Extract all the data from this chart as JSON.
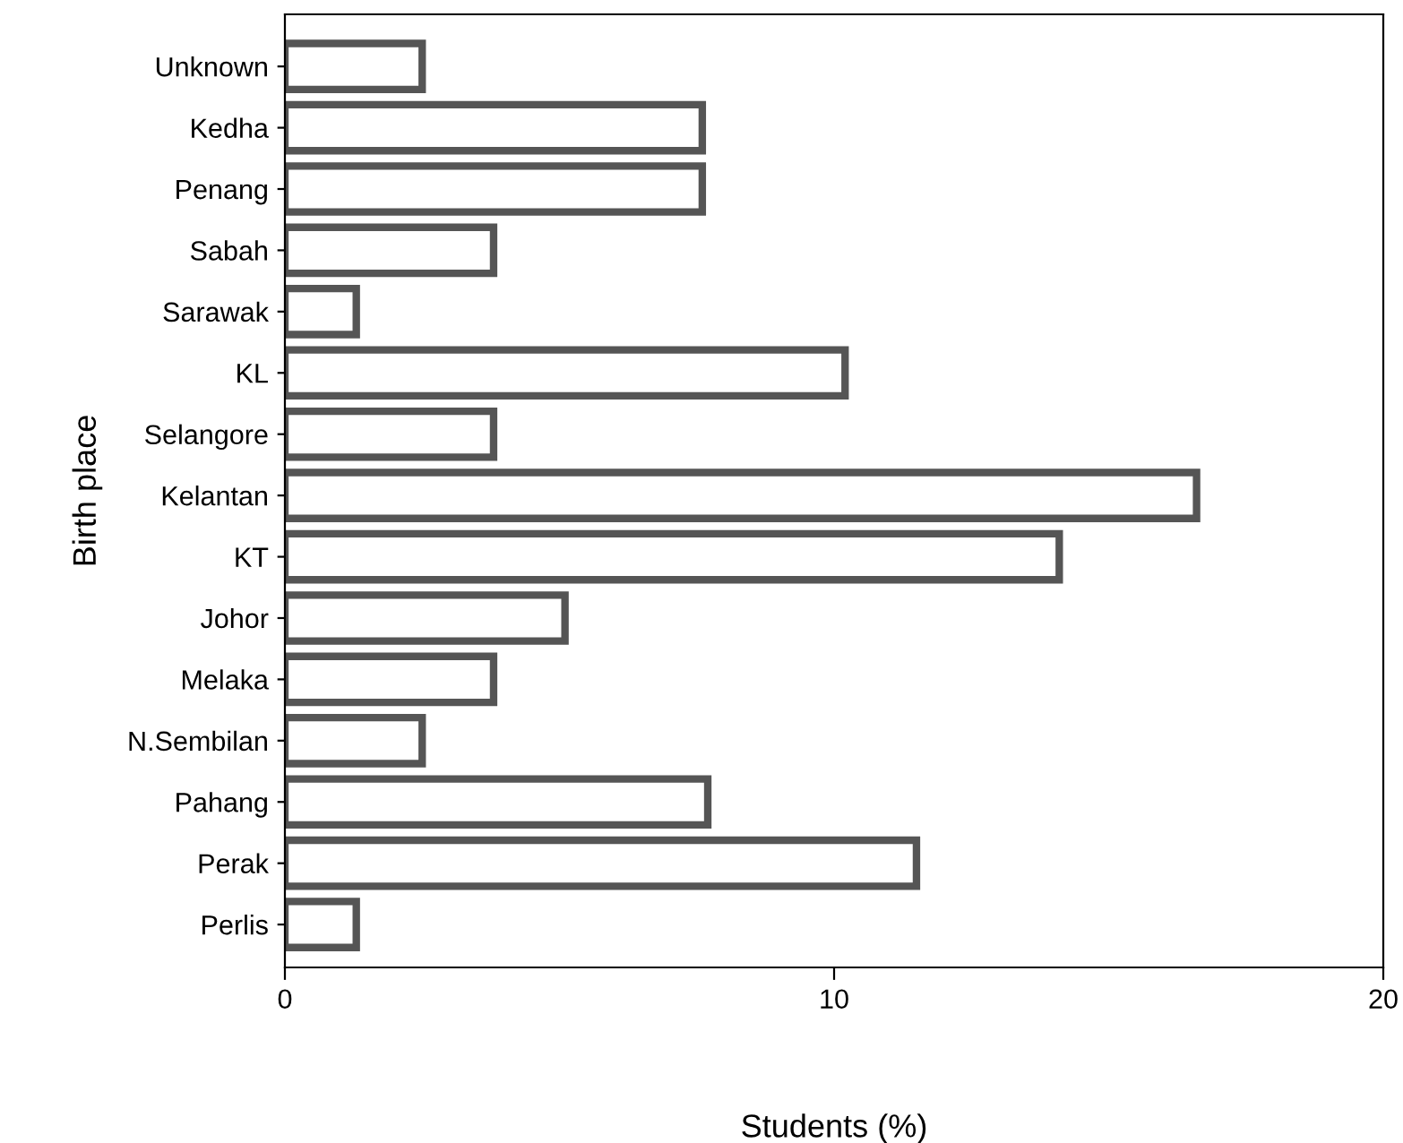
{
  "chart_data": {
    "type": "bar",
    "orientation": "horizontal",
    "xlabel": "Students (%)",
    "ylabel": "Birth place",
    "categories": [
      "Unknown",
      "Kedha",
      "Penang",
      "Sabah",
      "Sarawak",
      "KL",
      "Selangore",
      "Kelantan",
      "KT",
      "Johor",
      "Melaka",
      "N.Sembilan",
      "Pahang",
      "Perak",
      "Perlis"
    ],
    "values": [
      2.5,
      7.6,
      7.6,
      3.8,
      1.3,
      10.2,
      3.8,
      16.6,
      14.1,
      5.1,
      3.8,
      2.5,
      7.7,
      11.5,
      1.3
    ],
    "color": "#ffffff",
    "xlim": [
      0,
      20
    ],
    "xticks": [
      0,
      10,
      20
    ],
    "grid": false,
    "legend": false
  }
}
